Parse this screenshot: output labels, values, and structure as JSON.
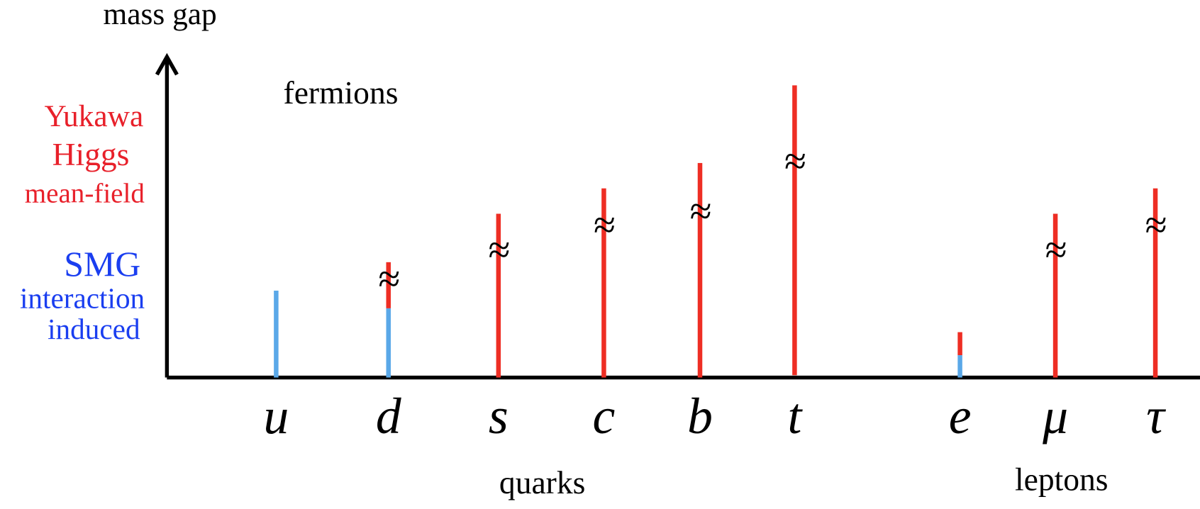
{
  "axis_label": "mass gap",
  "annotation": "fermions",
  "legend": {
    "red": [
      "Yukawa",
      "Higgs",
      "mean-field"
    ],
    "blue": [
      "SMG",
      "interaction",
      "induced"
    ]
  },
  "particles": [
    {
      "label": "u"
    },
    {
      "label": "d",
      "approx": "≈"
    },
    {
      "label": "s",
      "approx": "≈"
    },
    {
      "label": "c",
      "approx": "≈"
    },
    {
      "label": "b",
      "approx": "≈"
    },
    {
      "label": "t",
      "approx": "≈"
    },
    {
      "label": "e"
    },
    {
      "label": "μ",
      "approx": "≈"
    },
    {
      "label": "τ",
      "approx": "≈"
    }
  ],
  "groups": [
    "quarks",
    "leptons"
  ]
}
